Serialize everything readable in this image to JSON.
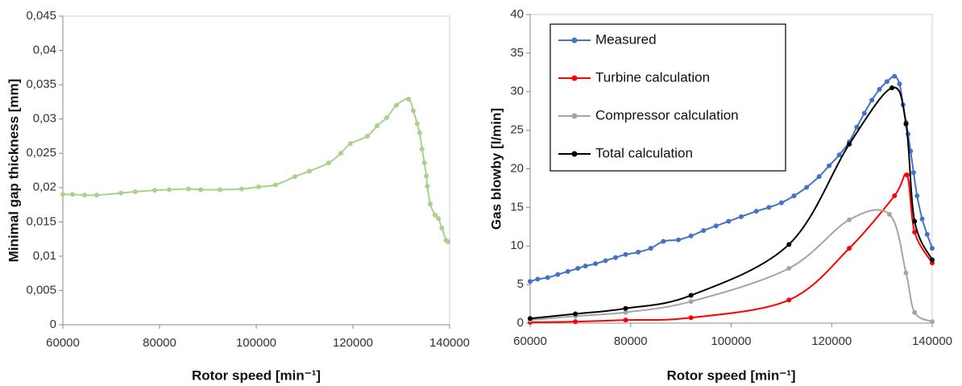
{
  "chart_data": [
    {
      "type": "line",
      "x_label": "Rotor speed [min⁻¹]",
      "y_label": "Minimal gap thickness [mm]",
      "color": "#a9d18e",
      "x": [
        60000,
        62000,
        64500,
        67000,
        72000,
        75000,
        79000,
        82000,
        86000,
        88500,
        92500,
        97000,
        100500,
        104000,
        108000,
        111000,
        115000,
        117500,
        119500,
        123000,
        125000,
        127000,
        129000,
        131500,
        132500,
        133300,
        133800,
        134300,
        134800,
        135200,
        135400,
        136000,
        137000,
        137700,
        138400,
        139300,
        139700
      ],
      "values": [
        0.019,
        0.019,
        0.0189,
        0.0189,
        0.0192,
        0.0194,
        0.0196,
        0.0197,
        0.0198,
        0.0197,
        0.0197,
        0.0198,
        0.0201,
        0.0204,
        0.0216,
        0.0224,
        0.0236,
        0.025,
        0.0264,
        0.0275,
        0.029,
        0.0302,
        0.032,
        0.0329,
        0.0312,
        0.0293,
        0.028,
        0.0256,
        0.0236,
        0.0217,
        0.0202,
        0.0176,
        0.016,
        0.0155,
        0.0141,
        0.0123,
        0.0121
      ],
      "xlim": [
        60000,
        140000
      ],
      "xticks": [
        60000,
        80000,
        100000,
        120000,
        140000
      ],
      "ylim": [
        0,
        0.045
      ],
      "yticks": [
        0,
        {
          "value": 0.005,
          "label": "0,005"
        },
        {
          "value": 0.01,
          "label": "0,01"
        },
        {
          "value": 0.015,
          "label": "0,015"
        },
        {
          "value": 0.02,
          "label": "0,02"
        },
        {
          "value": 0.025,
          "label": "0,025"
        },
        {
          "value": 0.03,
          "label": "0,03"
        },
        {
          "value": 0.035,
          "label": "0,035"
        },
        {
          "value": 0.04,
          "label": "0,04"
        },
        {
          "value": 0.045,
          "label": "0,045"
        }
      ]
    },
    {
      "type": "line",
      "x_label": "Rotor speed [min⁻¹]",
      "y_label": "Gas blowby [l/min]",
      "legend": "upper left",
      "xlim": [
        60000,
        140000
      ],
      "xticks": [
        60000,
        80000,
        100000,
        120000,
        140000
      ],
      "ylim": [
        0,
        40
      ],
      "yticks": [
        0,
        5,
        10,
        15,
        20,
        25,
        30,
        35,
        40
      ],
      "series": [
        {
          "name": "Measured",
          "color": "#4472c4",
          "x": [
            60000,
            61500,
            63500,
            65500,
            67500,
            69500,
            71000,
            73000,
            75000,
            77000,
            79000,
            81500,
            84000,
            86500,
            89500,
            92000,
            94500,
            97000,
            99500,
            102000,
            105000,
            107500,
            110000,
            112500,
            115000,
            117500,
            119500,
            121500,
            123500,
            125000,
            126500,
            128000,
            129500,
            131000,
            132500,
            133500,
            134200,
            134800,
            135200,
            135700,
            136300,
            137000,
            138000,
            139000,
            140000
          ],
          "values": [
            5.4,
            5.7,
            5.9,
            6.3,
            6.7,
            7.1,
            7.4,
            7.7,
            8.1,
            8.5,
            8.9,
            9.2,
            9.7,
            10.6,
            10.8,
            11.3,
            12.0,
            12.6,
            13.2,
            13.8,
            14.5,
            15.0,
            15.6,
            16.5,
            17.6,
            19.0,
            20.4,
            21.8,
            23.5,
            25.4,
            27.2,
            28.9,
            30.3,
            31.3,
            32.0,
            31.0,
            28.3,
            26.0,
            24.5,
            22.3,
            19.5,
            16.5,
            13.5,
            11.5,
            9.7
          ]
        },
        {
          "name": "Turbine calculation",
          "color": "#ff0000",
          "x": [
            60000,
            69000,
            79000,
            92000,
            111500,
            123500,
            132500,
            135000,
            136500,
            140000
          ],
          "values": [
            0.1,
            0.2,
            0.4,
            0.7,
            3.0,
            9.7,
            16.5,
            19.2,
            11.8,
            7.8
          ]
        },
        {
          "name": "Compressor calculation",
          "color": "#a5a5a5",
          "x": [
            60000,
            69000,
            79000,
            92000,
            111500,
            123500,
            131500,
            134800,
            136500,
            140000
          ],
          "values": [
            0.4,
            0.9,
            1.4,
            2.8,
            7.1,
            13.4,
            14.1,
            6.5,
            1.4,
            0.2
          ]
        },
        {
          "name": "Total calculation",
          "color": "#000000",
          "x": [
            60000,
            69000,
            79000,
            92000,
            111500,
            123500,
            132000,
            134800,
            136500,
            140000
          ],
          "values": [
            0.6,
            1.2,
            1.9,
            3.6,
            10.2,
            23.2,
            30.5,
            25.8,
            13.2,
            8.2
          ]
        }
      ]
    }
  ]
}
